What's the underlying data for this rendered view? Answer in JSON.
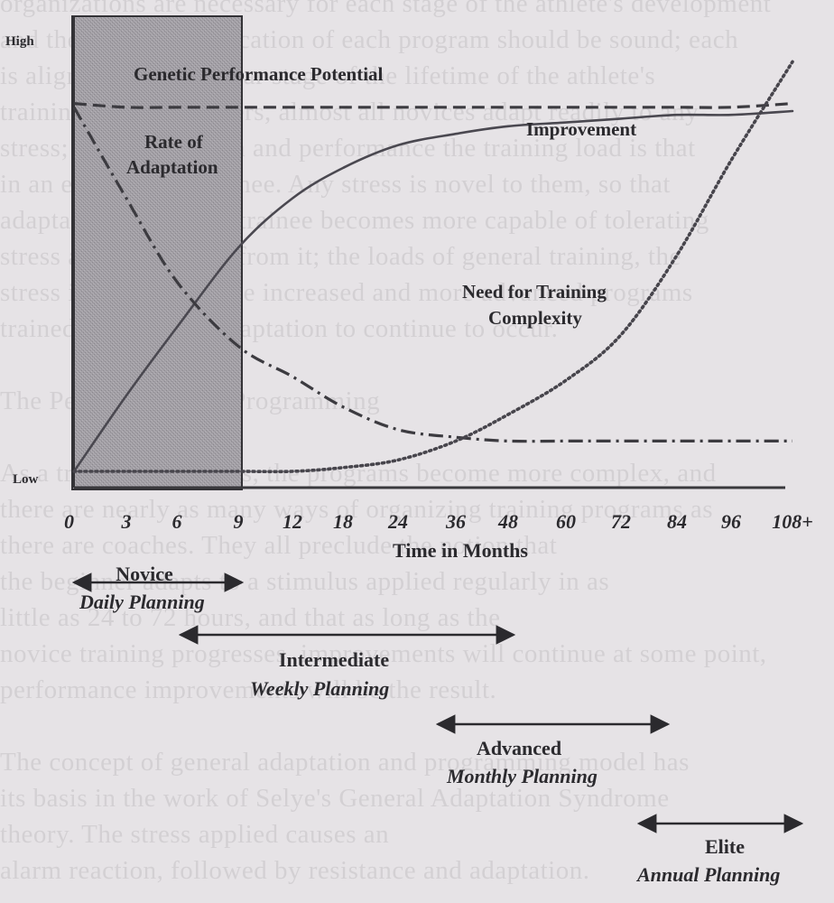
{
  "background_text": [
    "organizations are necessary for each stage of the athlete's development",
    "and the blend of application of each program should be sound; each",
    "is aligned to a particular stage of the lifetime of the athlete's",
    "training. With beginners, almost all novices adapt readily to any",
    "stress; to gain strength and performance the training load is that",
    "in an easy, novice trainee. Any stress is novel to them, so that",
    "adaptation begins the trainee becomes more capable of tolerating",
    "stress and recovering from it; the loads of general training, the",
    "stress involved must be increased and more advanced programs",
    "trained in order for adaptation to continue to occur.",
    "",
    "The Periodization of Programming",
    "",
    "As a trainee progresses, the programs become more complex, and",
    "there are nearly as many ways of organizing training programs as",
    "there are coaches. They all preclude the notion that",
    "the beginner adapts to a stimulus applied regularly in as",
    "little as 24 to 72 hours, and that as long as the",
    "novice training progresses, improvements will continue at some point,",
    "performance improvements will be the result.",
    "",
    "The concept of general adaptation and programming model has",
    "its basis in the work of Selye's General Adaptation Syndrome",
    "theory. The stress applied causes an",
    "alarm reaction, followed by resistance and adaptation."
  ],
  "chart_data": {
    "type": "line",
    "title": "",
    "xlabel": "Time in Months",
    "ylabel": "",
    "y_tick_labels": [
      "High",
      "Low"
    ],
    "ylim": [
      0,
      100
    ],
    "x_tick_labels": [
      "0",
      "3",
      "6",
      "9",
      "12",
      "18",
      "24",
      "36",
      "48",
      "60",
      "72",
      "84",
      "96",
      "108+"
    ],
    "shaded_region": {
      "from_tick": "0",
      "to_tick": "9"
    },
    "series": [
      {
        "name": "Genetic Performance Potential",
        "style": "dashed",
        "values": [
          97,
          96,
          96,
          96,
          96,
          96,
          96,
          96,
          96,
          96,
          96,
          96,
          96,
          97
        ]
      },
      {
        "name": "Improvement",
        "style": "solid",
        "values": [
          0,
          20,
          38,
          59,
          72,
          80,
          86,
          89,
          91,
          92,
          93,
          94,
          94,
          95
        ]
      },
      {
        "name": "Rate of Adaptation",
        "style": "dash-dot",
        "values": [
          96,
          72,
          50,
          33,
          25,
          17,
          11,
          9,
          8,
          8,
          8,
          8,
          8,
          8
        ]
      },
      {
        "name": "Need for Training Complexity",
        "style": "dotted",
        "values": [
          0,
          0,
          0,
          0,
          0,
          1,
          3,
          8,
          15,
          24,
          36,
          57,
          82,
          108
        ]
      }
    ],
    "series_labels": {
      "genetic": "Genetic Performance Potential",
      "rate_line1": "Rate of",
      "rate_line2": "Adaptation",
      "improvement": "Improvement",
      "need_line1": "Need for Training",
      "need_line2": "Complexity"
    },
    "stages": [
      {
        "name": "Novice",
        "planning": "Daily Planning",
        "from_tick": "0",
        "to_tick": "9"
      },
      {
        "name": "Intermediate",
        "planning": "Weekly Planning",
        "from_tick": "6",
        "to_tick": "48"
      },
      {
        "name": "Advanced",
        "planning": "Monthly Planning",
        "from_tick": "36",
        "to_tick": "84"
      },
      {
        "name": "Elite",
        "planning": "Annual Planning",
        "from_tick": "84",
        "to_tick": "108+"
      }
    ]
  }
}
